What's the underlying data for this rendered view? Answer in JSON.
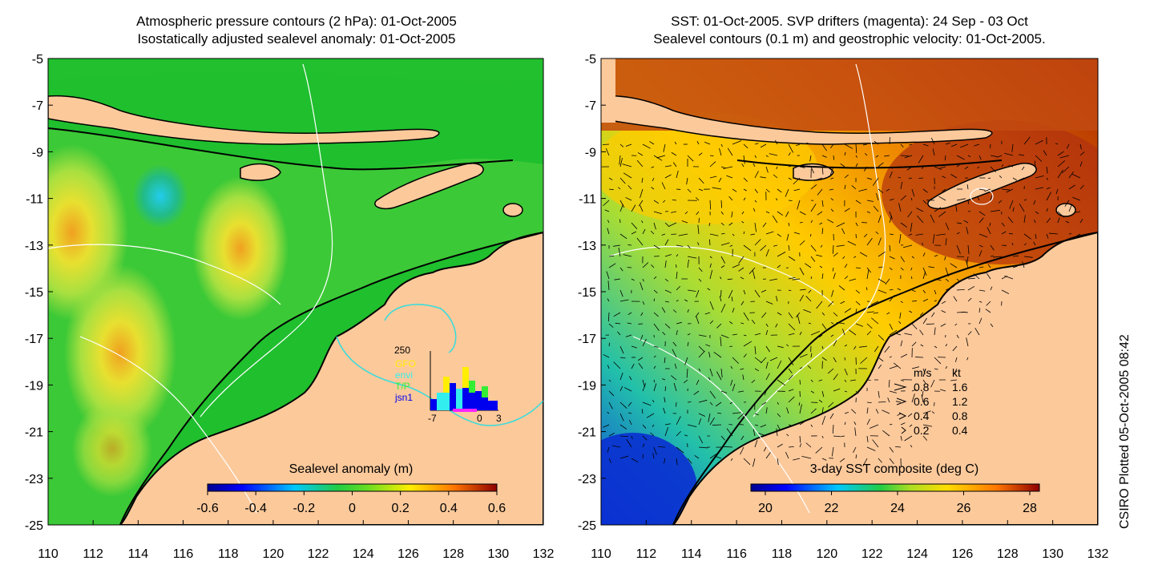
{
  "left_panel": {
    "title_line1": "Atmospheric pressure contours (2 hPa): 01-Oct-2005",
    "title_line2": "Isostatically adjusted sealevel anomaly: 01-Oct-2005",
    "colorbar_title": "Sealevel anomaly (m)",
    "colorbar_ticks": [
      "-0.6",
      "-0.4",
      "-0.2",
      "0",
      "0.2",
      "0.4",
      "0.6"
    ],
    "colors": {
      "ocean_base": "#22c22e",
      "land": "#fcc99b",
      "contour": "#ffffff",
      "coast": "#000000",
      "pressure_contour": "#33dddd"
    },
    "inset": {
      "y_top_label": "250",
      "legend": [
        "GFO",
        "envi",
        "T/P",
        "jsn1"
      ],
      "legend_colors": [
        "#ffee00",
        "#33eeee",
        "#33ee33",
        "#0000ee"
      ],
      "x_tick_labels": [
        "-7",
        "0",
        "3"
      ]
    }
  },
  "right_panel": {
    "title_line1": "SST: 01-Oct-2005. SVP drifters (magenta): 24 Sep - 03 Oct",
    "title_line2": "Sealevel contours (0.1 m) and geostrophic velocity: 01-Oct-2005.",
    "colorbar_title": "3-day SST composite (deg C)",
    "colorbar_ticks": [
      "20",
      "22",
      "24",
      "26",
      "28"
    ],
    "colors": {
      "land": "#fcc99b",
      "contour": "#ffffff",
      "coast": "#000000"
    },
    "velocity_legend": {
      "header": [
        "m/s",
        "kt"
      ],
      "rows": [
        [
          "0.8",
          "1.6"
        ],
        [
          "0.6",
          "1.2"
        ],
        [
          "0.4",
          "0.8"
        ],
        [
          "0.2",
          "0.4"
        ]
      ]
    }
  },
  "axes": {
    "x_ticks": [
      "110",
      "112",
      "114",
      "116",
      "118",
      "120",
      "122",
      "124",
      "126",
      "128",
      "130",
      "132"
    ],
    "y_ticks": [
      "-5",
      "-7",
      "-9",
      "-11",
      "-13",
      "-15",
      "-17",
      "-19",
      "-21",
      "-23",
      "-25"
    ]
  },
  "credit": "CSIRO Plotted 05-Oct-2005 08:42"
}
